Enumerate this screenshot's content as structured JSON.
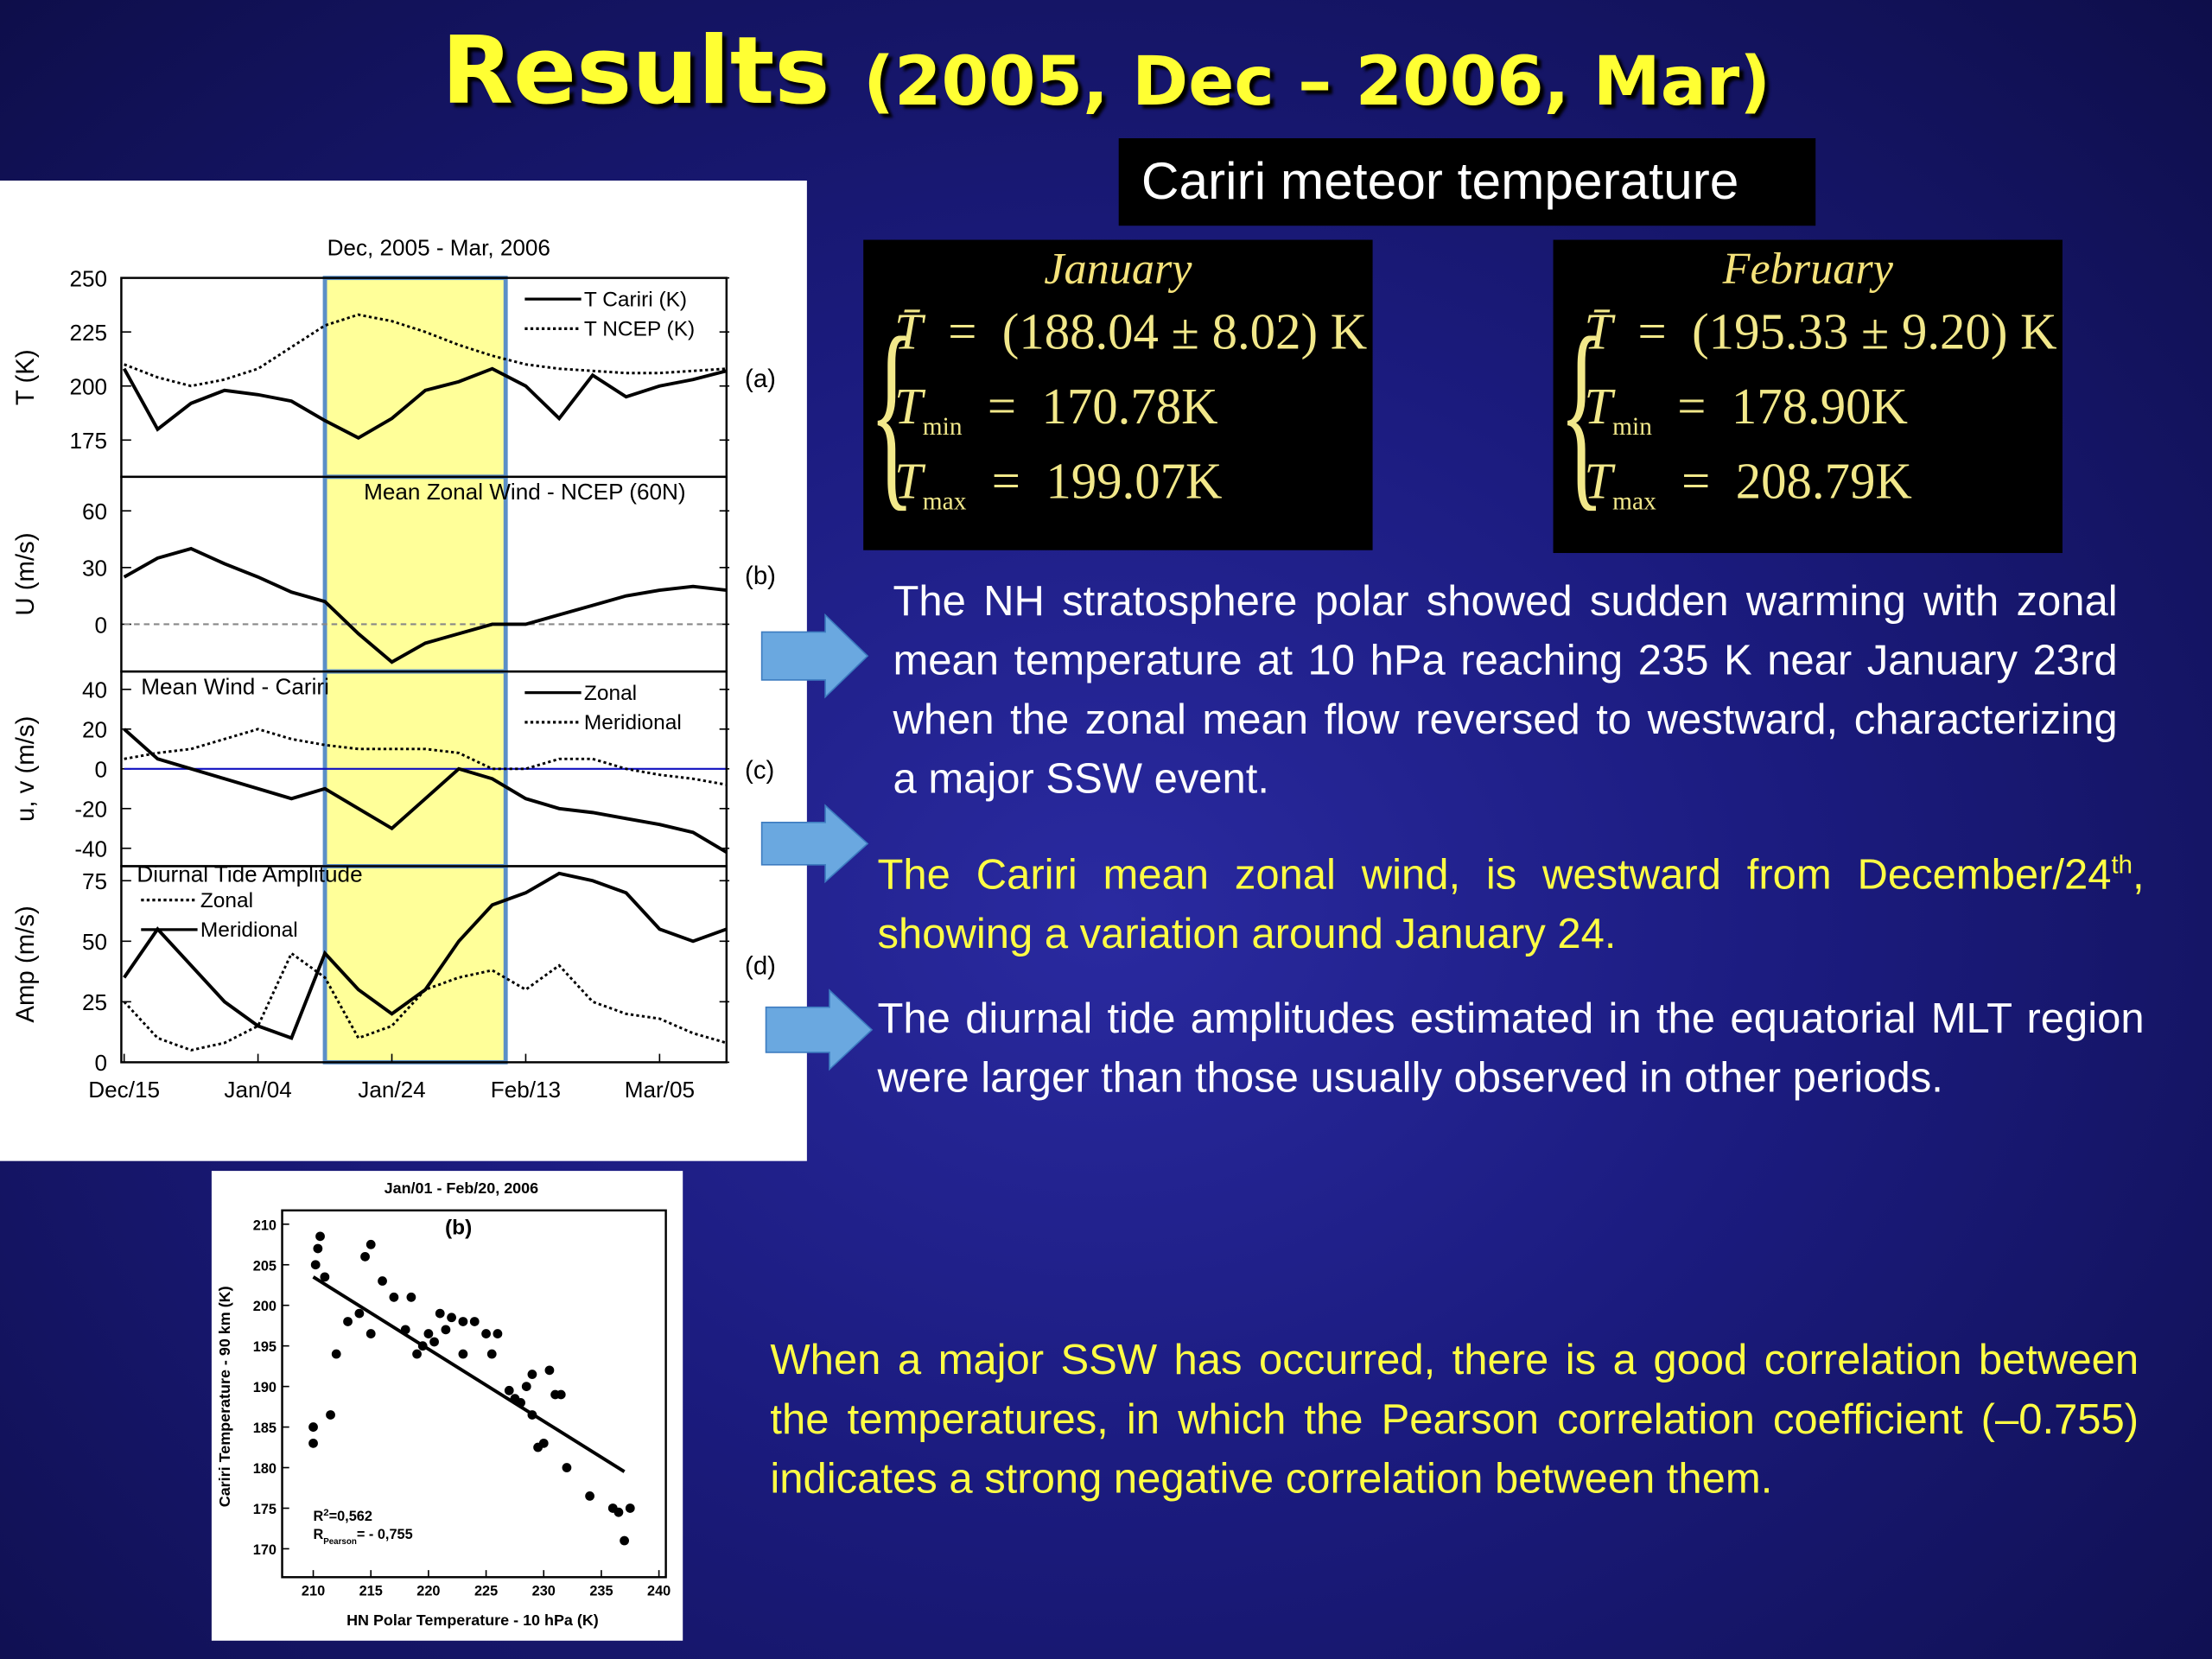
{
  "title": "Results",
  "subtitle": "(2005, Dec – 2006, Mar)",
  "box_label": "Cariri meteor temperature",
  "formulas": [
    {
      "heading": "January",
      "rows": [
        {
          "symbol": "T̄",
          "sub": "",
          "relation": "=",
          "value": "(188.04 ± 8.02) K"
        },
        {
          "symbol": "T",
          "sub": "min",
          "relation": "=",
          "value": "170.78K"
        },
        {
          "symbol": "T",
          "sub": "max",
          "relation": "=",
          "value": "199.07K"
        }
      ]
    },
    {
      "heading": "February",
      "rows": [
        {
          "symbol": "T̄",
          "sub": "",
          "relation": "=",
          "value": "(195.33 ± 9.20) K"
        },
        {
          "symbol": "T",
          "sub": "min",
          "relation": "=",
          "value": "178.90K"
        },
        {
          "symbol": "T",
          "sub": "max",
          "relation": "=",
          "value": "208.79K"
        }
      ]
    }
  ],
  "paragraphs": [
    {
      "parts": [
        "The NH stratosphere polar showed sudden warming with zonal mean temperature at 10 hPa reaching 235 K near January 23rd when the zonal mean flow reversed to westward, characterizing a major SSW event."
      ]
    },
    {
      "parts": [
        "The Cariri mean zonal wind, is westward from December/24",
        "th",
        ", showing a variation around January 24."
      ]
    },
    {
      "parts": [
        "The diurnal tide amplitudes estimated in the equatorial MLT region were larger than those usually observed in other periods."
      ]
    },
    {
      "parts": [
        "When a major SSW has occurred, there is a good correlation between the temperatures, in which the Pearson correlation coefficient (–0.755) indicates a strong negative correlation between them."
      ]
    }
  ],
  "chart_data": [
    {
      "type": "line",
      "title": "Dec, 2005 - Mar, 2006",
      "ylabel": "T (K)",
      "panel_label": "(a)",
      "xlim": [
        0,
        90
      ],
      "ylim": [
        158,
        250
      ],
      "yticks": [
        175,
        200,
        225,
        250
      ],
      "highlight": [
        30,
        57
      ],
      "legend": "upper right",
      "x": [
        0,
        5,
        10,
        15,
        20,
        25,
        30,
        35,
        40,
        45,
        50,
        55,
        60,
        65,
        70,
        75,
        80,
        85,
        90
      ],
      "series": [
        {
          "name": "T Cariri (K)",
          "color": "#000000",
          "style": "solid",
          "values": [
            208,
            180,
            192,
            198,
            196,
            193,
            184,
            176,
            185,
            198,
            202,
            208,
            200,
            185,
            205,
            195,
            200,
            203,
            207
          ]
        },
        {
          "name": "T NCEP (K)",
          "color": "#000000",
          "style": "dotted",
          "values": [
            210,
            204,
            200,
            203,
            208,
            218,
            228,
            233,
            230,
            225,
            219,
            214,
            210,
            208,
            207,
            206,
            206,
            207,
            208
          ]
        }
      ]
    },
    {
      "type": "line",
      "annotation": "Mean Zonal Wind - NCEP (60N)",
      "ylabel": "U (m/s)",
      "panel_label": "(b)",
      "xlim": [
        0,
        90
      ],
      "ylim": [
        -25,
        78
      ],
      "yticks": [
        0,
        30,
        60
      ],
      "highlight": [
        30,
        57
      ],
      "hline": 0,
      "hline_color": "#888888",
      "hline_style": "dashed",
      "x": [
        0,
        5,
        10,
        15,
        20,
        25,
        30,
        35,
        40,
        45,
        50,
        55,
        60,
        65,
        70,
        75,
        80,
        85,
        90
      ],
      "series": [
        {
          "color": "#000000",
          "style": "solid",
          "values": [
            25,
            35,
            40,
            32,
            25,
            17,
            12,
            -5,
            -20,
            -10,
            -5,
            0,
            0,
            5,
            10,
            15,
            18,
            20,
            18
          ]
        }
      ]
    },
    {
      "type": "line",
      "annotation": "Mean Wind - Cariri",
      "ylabel": "u, v (m/s)",
      "panel_label": "(c)",
      "xlim": [
        0,
        90
      ],
      "ylim": [
        -49,
        49
      ],
      "yticks": [
        40,
        20,
        0,
        -20,
        -40
      ],
      "highlight": [
        30,
        57
      ],
      "hline": 0,
      "hline_color": "#1010c0",
      "hline_style": "solid",
      "legend": "upper right",
      "x": [
        0,
        5,
        10,
        15,
        20,
        25,
        30,
        35,
        40,
        45,
        50,
        55,
        60,
        65,
        70,
        75,
        80,
        85,
        90
      ],
      "series": [
        {
          "name": "Zonal",
          "color": "#000000",
          "style": "solid",
          "values": [
            20,
            5,
            0,
            -5,
            -10,
            -15,
            -10,
            -20,
            -30,
            -15,
            0,
            -5,
            -15,
            -20,
            -22,
            -25,
            -28,
            -32,
            -42
          ]
        },
        {
          "name": "Meridional",
          "color": "#000000",
          "style": "dotted",
          "values": [
            5,
            8,
            10,
            15,
            20,
            15,
            12,
            10,
            10,
            10,
            8,
            0,
            0,
            5,
            5,
            0,
            -3,
            -5,
            -8
          ]
        }
      ]
    },
    {
      "type": "line",
      "annotation": "Diurnal Tide Amplitude",
      "ylabel": "Amp (m/s)",
      "panel_label": "(d)",
      "xlim": [
        0,
        90
      ],
      "ylim": [
        0,
        81
      ],
      "yticks": [
        0,
        25,
        50,
        75
      ],
      "highlight": [
        30,
        57
      ],
      "legend": "upper left",
      "xticks": [
        {
          "value": 0,
          "label": "Dec/15"
        },
        {
          "value": 20,
          "label": "Jan/04"
        },
        {
          "value": 40,
          "label": "Jan/24"
        },
        {
          "value": 60,
          "label": "Feb/13"
        },
        {
          "value": 80,
          "label": "Mar/05"
        }
      ],
      "x": [
        0,
        5,
        10,
        15,
        20,
        25,
        30,
        35,
        40,
        45,
        50,
        55,
        60,
        65,
        70,
        75,
        80,
        85,
        90
      ],
      "series": [
        {
          "name": "Zonal",
          "color": "#000000",
          "style": "dotted",
          "values": [
            25,
            10,
            5,
            8,
            15,
            45,
            35,
            10,
            15,
            30,
            35,
            38,
            30,
            40,
            25,
            20,
            18,
            12,
            8
          ]
        },
        {
          "name": "Meridional",
          "color": "#000000",
          "style": "solid",
          "values": [
            35,
            55,
            40,
            25,
            15,
            10,
            45,
            30,
            20,
            30,
            50,
            65,
            70,
            78,
            75,
            70,
            55,
            50,
            55
          ]
        }
      ]
    },
    {
      "type": "scatter",
      "title": "Jan/01 - Feb/20, 2006",
      "panel_label": "(b)",
      "xlabel": "HN Polar Temperature - 10 hPa (K)",
      "ylabel": "Cariri Temperature - 90 km (K)",
      "xlim": [
        207.3,
        240.6
      ],
      "ylim": [
        166.5,
        211.7
      ],
      "xticks": [
        210,
        215,
        220,
        225,
        230,
        235,
        240
      ],
      "yticks": [
        170,
        175,
        180,
        185,
        190,
        195,
        200,
        205,
        210
      ],
      "x": [
        210,
        210,
        210.2,
        210.4,
        210.6,
        211,
        211.5,
        212,
        213,
        214,
        214.5,
        215,
        215,
        216,
        217,
        218,
        218.5,
        219,
        219.5,
        220,
        220.5,
        221,
        221.5,
        222,
        223,
        223,
        224,
        225,
        225.5,
        226,
        227,
        227.5,
        228,
        228.5,
        229,
        229,
        229.5,
        230,
        230.5,
        231,
        231.5,
        232,
        234,
        236,
        236.5,
        237,
        237.5
      ],
      "y": [
        185,
        183,
        205,
        207,
        208.5,
        203.5,
        186.5,
        194,
        198,
        199,
        206,
        207.5,
        196.5,
        203,
        201,
        197,
        201,
        194,
        195,
        196.5,
        195.5,
        199,
        197,
        198.5,
        194,
        198,
        198,
        196.5,
        194,
        196.5,
        189.5,
        188.5,
        188,
        190,
        186.5,
        191.5,
        182.5,
        183,
        192,
        189,
        189,
        180,
        176.5,
        175,
        174.5,
        171,
        175
      ],
      "color": "#000000",
      "fit": {
        "x": [
          210,
          237
        ],
        "y": [
          203.5,
          179.5
        ]
      },
      "stats": [
        {
          "base": "R",
          "sup": "2",
          "sub": "",
          "rest": "=0,562"
        },
        {
          "base": "R",
          "sup": "",
          "sub": "Pearson",
          "rest": "= - 0,755"
        }
      ]
    }
  ]
}
